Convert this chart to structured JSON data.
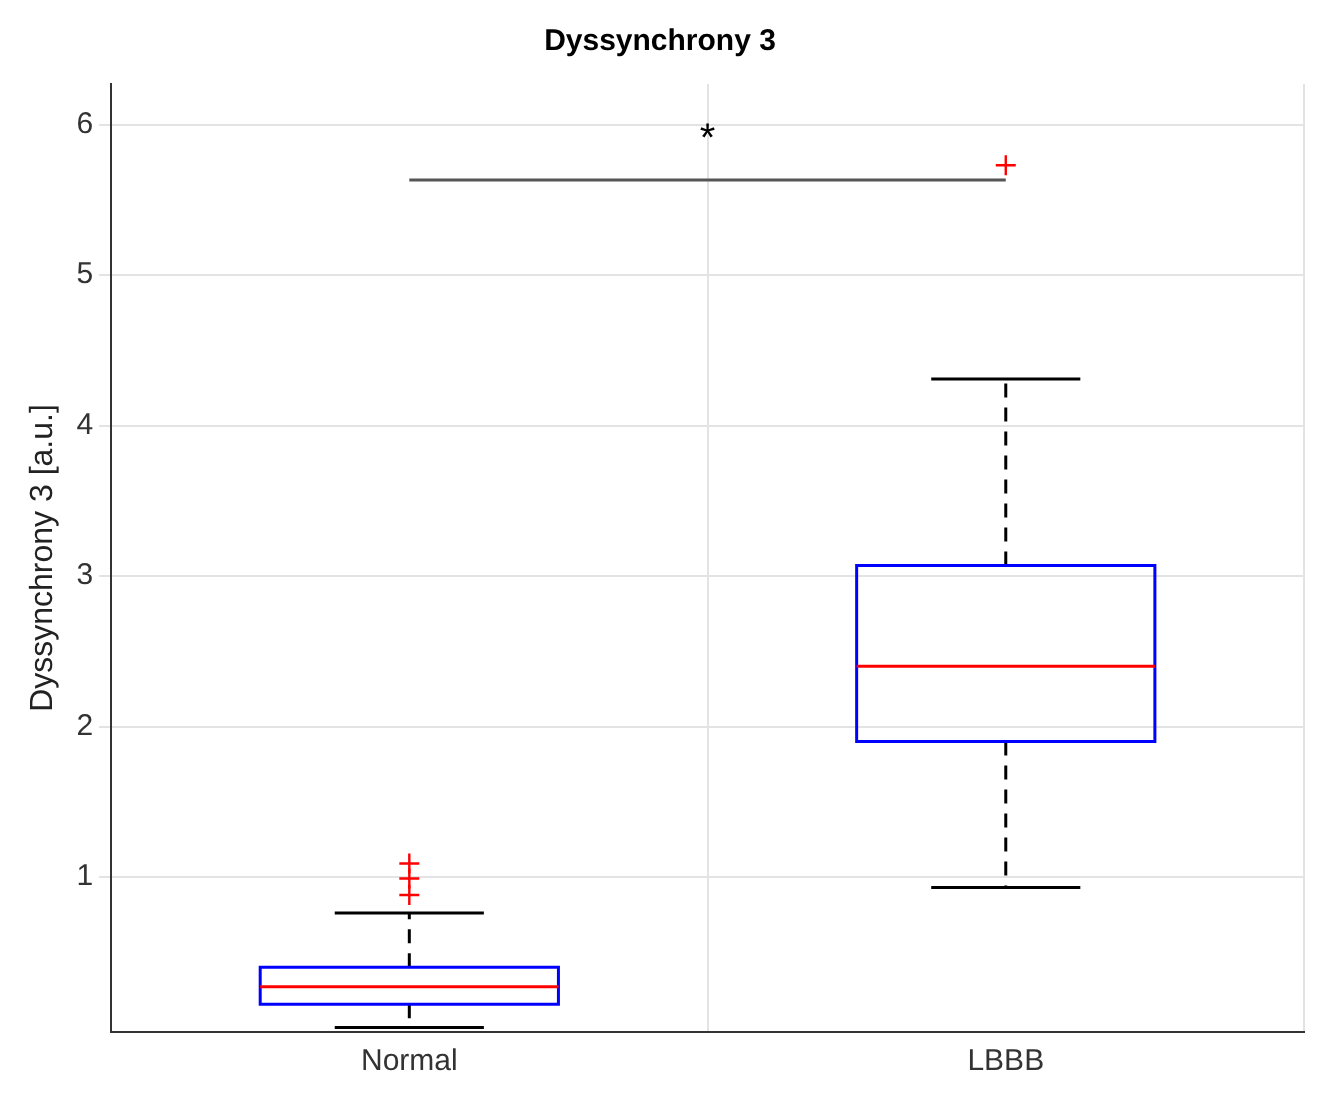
{
  "chart_data": {
    "type": "box",
    "title": "Dyssynchrony 3",
    "ylabel": "Dyssynchrony 3 [a.u.]",
    "categories": [
      "Normal",
      "LBBB"
    ],
    "color": "#0000ff",
    "boxes": [
      {
        "low": 0.0,
        "q1": 0.155,
        "median": 0.27,
        "q3": 0.4,
        "high": 0.76,
        "outliers": [
          0.88,
          0.99,
          1.09
        ]
      },
      {
        "low": 0.93,
        "q1": 1.9,
        "median": 2.4,
        "q3": 3.07,
        "high": 4.31,
        "outliers": [
          5.73
        ]
      }
    ],
    "ylim": [
      -0.03,
      6.27
    ],
    "yticks": [
      1,
      2,
      3,
      4,
      5,
      6
    ],
    "grid": true,
    "annotations": [
      "*"
    ]
  }
}
